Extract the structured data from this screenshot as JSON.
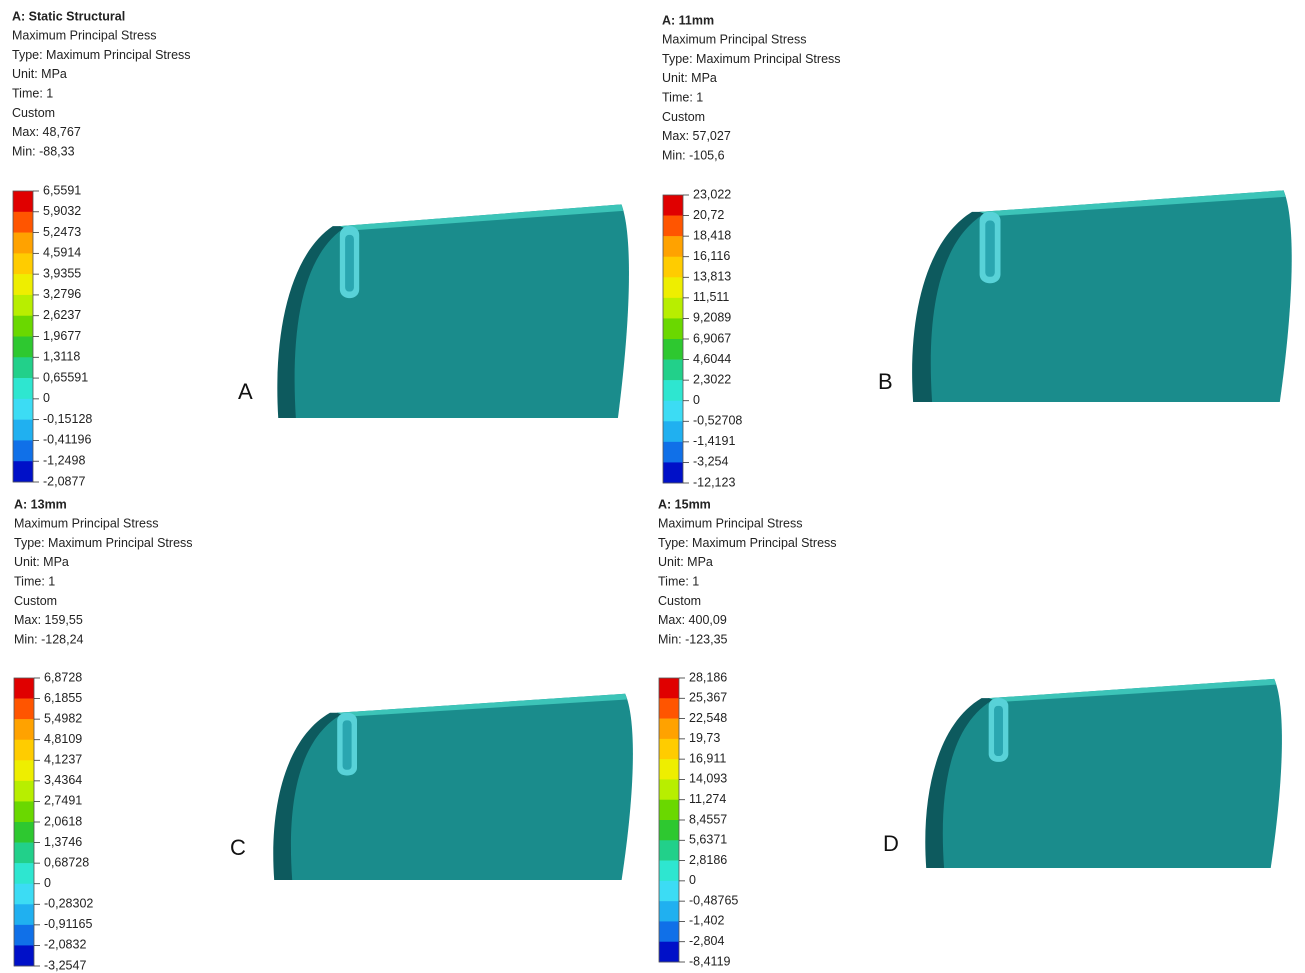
{
  "panels": [
    {
      "title": "A: Static Structural",
      "lines": [
        "Maximum Principal Stress",
        "Type: Maximum Principal Stress",
        "Unit: MPa",
        "Time: 1",
        "Custom",
        "Max: 48,767",
        "Min: -88,33"
      ],
      "legend": [
        "6,5591",
        "5,9032",
        "5,2473",
        "4,5914",
        "3,9355",
        "3,2796",
        "2,6237",
        "1,9677",
        "1,3118",
        "0,65591",
        "0",
        "-0,15128",
        "-0,41196",
        "-1,2498",
        "-2,0877"
      ],
      "label": "A"
    },
    {
      "title": "A: 11mm",
      "lines": [
        "Maximum Principal Stress",
        "Type: Maximum Principal Stress",
        "Unit: MPa",
        "Time: 1",
        "Custom",
        "Max: 57,027",
        "Min: -105,6"
      ],
      "legend": [
        "23,022",
        "20,72",
        "18,418",
        "16,116",
        "13,813",
        "11,511",
        "9,2089",
        "6,9067",
        "4,6044",
        "2,3022",
        "0",
        "-0,52708",
        "-1,4191",
        "-3,254",
        "-12,123"
      ],
      "label": "B"
    },
    {
      "title": "A: 13mm",
      "lines": [
        "Maximum Principal Stress",
        "Type: Maximum Principal Stress",
        "Unit: MPa",
        "Time: 1",
        "Custom",
        "Max: 159,55",
        "Min: -128,24"
      ],
      "legend": [
        "6,8728",
        "6,1855",
        "5,4982",
        "4,8109",
        "4,1237",
        "3,4364",
        "2,7491",
        "2,0618",
        "1,3746",
        "0,68728",
        "0",
        "-0,28302",
        "-0,91165",
        "-2,0832",
        "-3,2547"
      ],
      "label": "C"
    },
    {
      "title": "A: 15mm",
      "lines": [
        "Maximum Principal Stress",
        "Type: Maximum Principal Stress",
        "Unit: MPa",
        "Time: 1",
        "Custom",
        "Max: 400,09",
        "Min: -123,35"
      ],
      "legend": [
        "28,186",
        "25,367",
        "22,548",
        "19,73",
        "16,911",
        "14,093",
        "11,274",
        "8,4557",
        "5,6371",
        "2,8186",
        "0",
        "-0,48765",
        "-1,402",
        "-2,804",
        "-8,4119"
      ],
      "label": "D"
    }
  ]
}
